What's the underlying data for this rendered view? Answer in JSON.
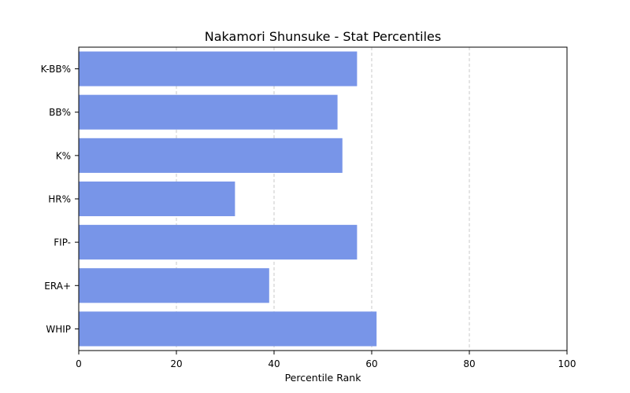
{
  "chart_data": {
    "type": "bar",
    "orientation": "horizontal",
    "title": "Nakamori Shunsuke - Stat Percentiles",
    "xlabel": "Percentile Rank",
    "ylabel": "",
    "xlim": [
      0,
      100
    ],
    "x_ticks": [
      0,
      20,
      40,
      60,
      80,
      100
    ],
    "grid": "x-dashed",
    "bar_color": "#7895e8",
    "categories": [
      "K-BB%",
      "BB%",
      "K%",
      "HR%",
      "FIP-",
      "ERA+",
      "WHIP"
    ],
    "values": [
      57,
      53,
      54,
      32,
      57,
      39,
      61
    ]
  }
}
